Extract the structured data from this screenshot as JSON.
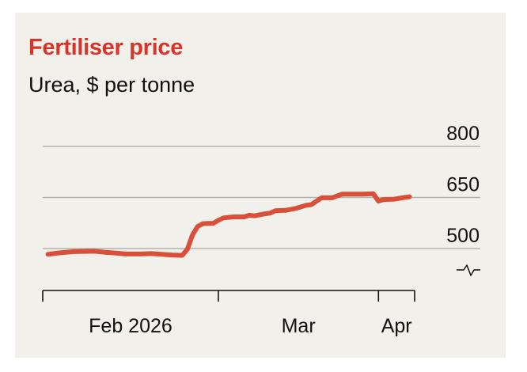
{
  "chart_data": {
    "type": "line",
    "title": "Fertiliser price",
    "subtitle": "Urea, $ per tonne",
    "xlabel": "",
    "ylabel": "",
    "x_ticks": [
      "Feb 2026",
      "Mar",
      "Apr"
    ],
    "y_ticks": [
      500,
      650,
      800
    ],
    "ylim": [
      420,
      800
    ],
    "y_axis_break": true,
    "grid": true,
    "series": [
      {
        "color": "#d94f3a",
        "points": [
          [
            "2026-01-27",
            483
          ],
          [
            "2026-01-29",
            487
          ],
          [
            "2026-02-01",
            491
          ],
          [
            "2026-02-05",
            492
          ],
          [
            "2026-02-07",
            489
          ],
          [
            "2026-02-09",
            487
          ],
          [
            "2026-02-11",
            484
          ],
          [
            "2026-02-14",
            484
          ],
          [
            "2026-02-16",
            485
          ],
          [
            "2026-02-18",
            483
          ],
          [
            "2026-02-20",
            481
          ],
          [
            "2026-02-22",
            480
          ],
          [
            "2026-02-23",
            498
          ],
          [
            "2026-02-24",
            540
          ],
          [
            "2026-02-25",
            565
          ],
          [
            "2026-02-26",
            573
          ],
          [
            "2026-02-27",
            574
          ],
          [
            "2026-02-28",
            574
          ],
          [
            "2026-03-01",
            583
          ],
          [
            "2026-03-02",
            590
          ],
          [
            "2026-03-04",
            593
          ],
          [
            "2026-03-06",
            593
          ],
          [
            "2026-03-07",
            598
          ],
          [
            "2026-03-08",
            596
          ],
          [
            "2026-03-10",
            602
          ],
          [
            "2026-03-11",
            604
          ],
          [
            "2026-03-12",
            611
          ],
          [
            "2026-03-14",
            612
          ],
          [
            "2026-03-16",
            618
          ],
          [
            "2026-03-18",
            627
          ],
          [
            "2026-03-19",
            629
          ],
          [
            "2026-03-21",
            649
          ],
          [
            "2026-03-23",
            649
          ],
          [
            "2026-03-25",
            660
          ],
          [
            "2026-03-27",
            660
          ],
          [
            "2026-03-29",
            660
          ],
          [
            "2026-03-31",
            661
          ],
          [
            "2026-04-01",
            639
          ],
          [
            "2026-04-02",
            644
          ],
          [
            "2026-04-04",
            645
          ],
          [
            "2026-04-06",
            650
          ],
          [
            "2026-04-07",
            652
          ]
        ]
      }
    ]
  }
}
